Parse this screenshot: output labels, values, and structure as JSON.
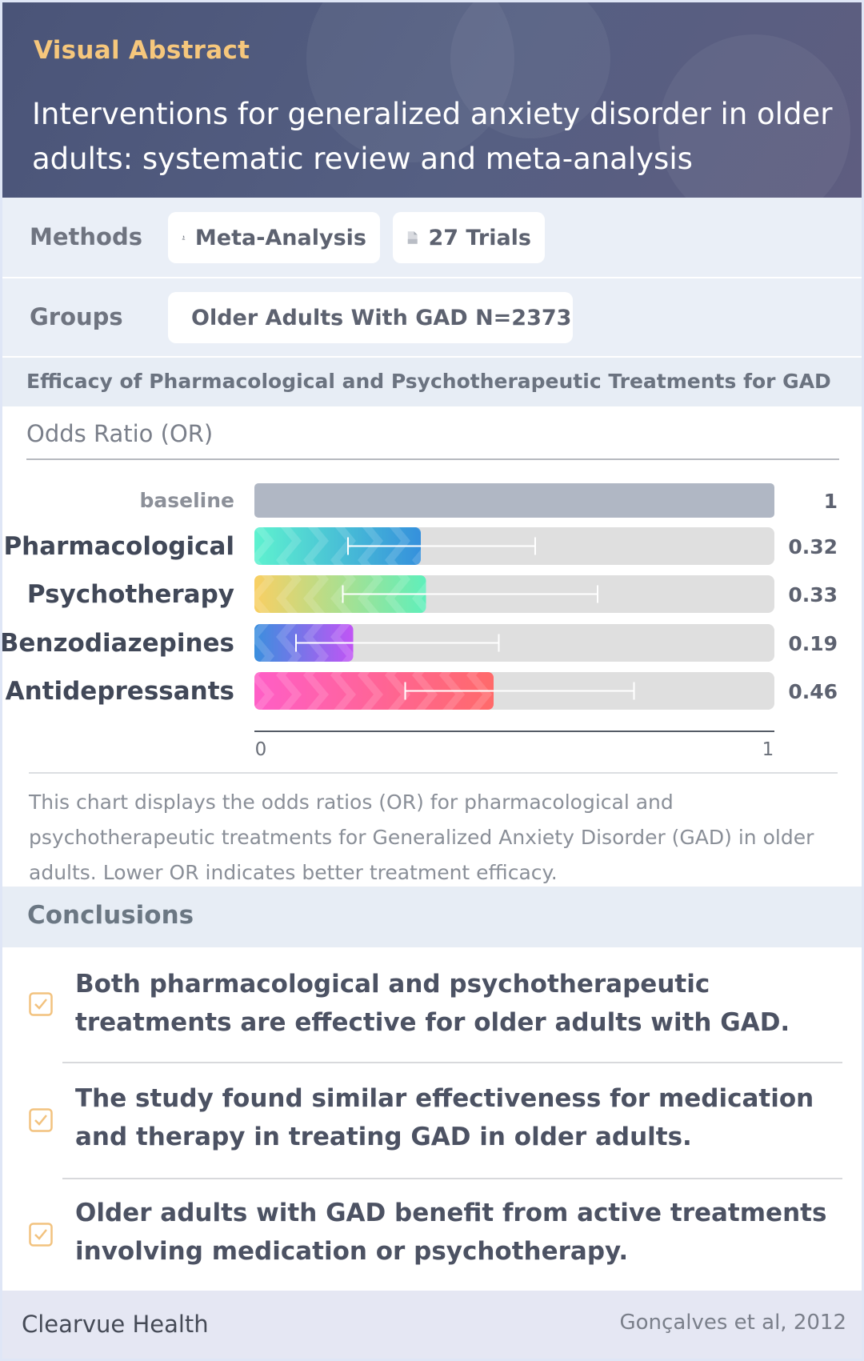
{
  "header": {
    "eyebrow": "Visual Abstract",
    "title": "Interventions for generalized anxiety disorder in older adults: systematic review and meta-analysis"
  },
  "methods": {
    "label": "Methods",
    "pills": [
      {
        "icon": "microscope-icon",
        "text": "Meta-Analysis"
      },
      {
        "icon": "document-icon",
        "text": "27 Trials"
      }
    ]
  },
  "groups": {
    "label": "Groups",
    "pills": [
      {
        "icon": "older-person-icon",
        "text": "Older Adults With GAD N=2373"
      }
    ]
  },
  "section_title": "Efficacy of Pharmacological and Psychotherapeutic Treatments for GAD",
  "chart_data": {
    "type": "bar",
    "orientation": "horizontal",
    "metric": "Odds Ratio (OR)",
    "baseline": {
      "label": "baseline",
      "value": 1,
      "display": "1"
    },
    "categories": [
      "Pharmacological",
      "Psychotherapy",
      "Benzodiazepines",
      "Antidepressants"
    ],
    "values": [
      0.32,
      0.33,
      0.19,
      0.46
    ],
    "value_labels": [
      "0.32",
      "0.33",
      "0.19",
      "0.46"
    ],
    "ci_low": [
      0.18,
      0.17,
      0.08,
      0.29
    ],
    "ci_high": [
      0.54,
      0.66,
      0.47,
      0.73
    ],
    "xlim": [
      0,
      1
    ],
    "xticks": [
      "0",
      "1"
    ],
    "colors": [
      [
        "#5ef2cf",
        "#3590dc"
      ],
      [
        "#f9cf63",
        "#5fefbb"
      ],
      [
        "#3a8fde",
        "#c155f5"
      ],
      [
        "#ff5ec7",
        "#ff6a6a"
      ]
    ],
    "baseline_color": "#b0b7c4",
    "track_color": "#dfdfdf"
  },
  "caption": "This chart displays the odds ratios (OR) for pharmacological and psychotherapeutic treatments for Generalized Anxiety Disorder (GAD) in older adults. Lower OR indicates better treatment efficacy.",
  "conclusions": {
    "title": "Conclusions",
    "items": [
      "Both pharmacological and psychotherapeutic treatments are effective for older adults with GAD.",
      "The study found similar effectiveness for medication and therapy in treating GAD in older adults.",
      "Older adults with GAD benefit from active treatments involving medication or psychotherapy."
    ],
    "check_color": "#f2c27e"
  },
  "footer": {
    "brand": "Clearvue Health",
    "citation": "Gonçalves et al, 2012"
  }
}
